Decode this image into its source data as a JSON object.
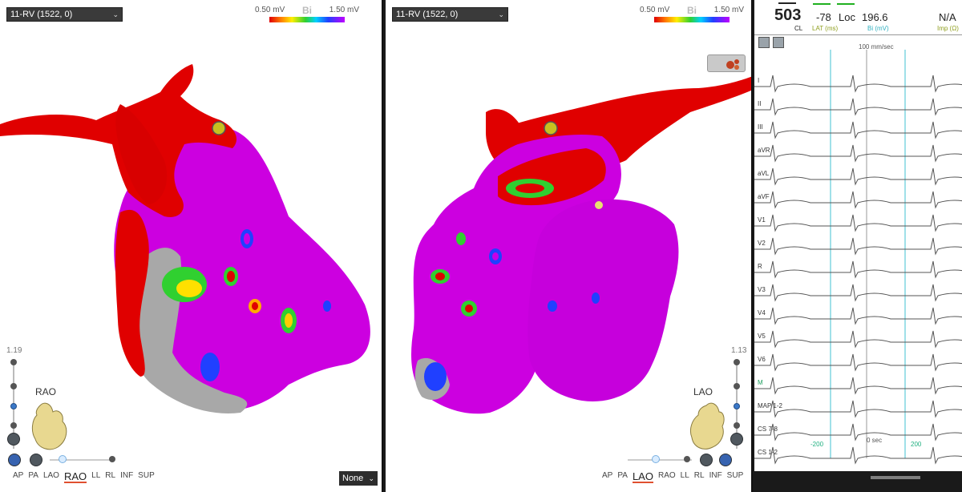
{
  "left_view": {
    "map_select": "11-RV (1522, 0)",
    "legend": {
      "min": "0.50 mV",
      "mode": "Bi",
      "max": "1.50 mV"
    },
    "zoom": "1.19",
    "orientation": "RAO",
    "views": [
      "AP",
      "PA",
      "LAO",
      "RAO",
      "LL",
      "RL",
      "INF",
      "SUP"
    ],
    "active_view": "RAO",
    "none_select": "None"
  },
  "right_view": {
    "map_select": "11-RV (1522, 0)",
    "legend": {
      "min": "0.50 mV",
      "mode": "Bi",
      "max": "1.50 mV"
    },
    "zoom": "1.13",
    "orientation": "LAO",
    "views": [
      "AP",
      "PA",
      "LAO",
      "RAO",
      "LL",
      "RL",
      "INF",
      "SUP"
    ],
    "active_view": "LAO"
  },
  "ecg": {
    "cl_value": "503",
    "cl_label": "CL",
    "lat_value": "-78",
    "lat_label": "LAT (ms)",
    "loc_label": "Loc",
    "bi_value": "196.6",
    "bi_label": "Bi (mV)",
    "imp_value": "N/A",
    "imp_label": "Imp (Ω)",
    "speed": "100 mm/sec",
    "leads": [
      "I",
      "II",
      "III",
      "aVR",
      "aVL",
      "aVF",
      "V1",
      "V2",
      "R",
      "V3",
      "V4",
      "V5",
      "V6",
      "M",
      "MAP 1-2",
      "CS 7-8",
      "CS 1-2"
    ],
    "time_axis": {
      "left": "-200",
      "center": "0 sec",
      "right": "200"
    }
  },
  "colors": {
    "scar_red": "#e00000",
    "healthy_purple": "#c800e6",
    "accent_blue": "#3a78c8",
    "ecg_line": "#555555",
    "ecg_marker": "#40c0d0"
  }
}
